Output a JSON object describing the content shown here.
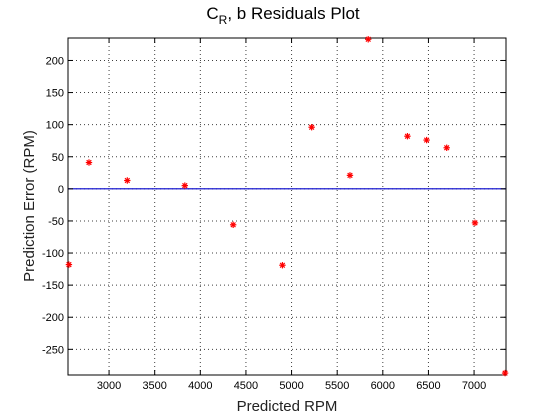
{
  "chart_data": {
    "type": "scatter",
    "title_main": "C",
    "title_sub": "R",
    "title_rest": ", b Residuals Plot",
    "xlabel": "Predicted RPM",
    "ylabel": "Prediction Error (RPM)",
    "xlim": [
      2550,
      7350
    ],
    "ylim": [
      -290,
      235
    ],
    "x_ticks": [
      3000,
      3500,
      4000,
      4500,
      5000,
      5500,
      6000,
      6500,
      7000
    ],
    "y_ticks": [
      200,
      150,
      100,
      50,
      0,
      -50,
      -100,
      -150,
      -200,
      -250
    ],
    "grid": true,
    "zero_line_color": "#0000cc",
    "marker_color": "#ff0000",
    "marker": "asterisk",
    "points": [
      {
        "x": 2560,
        "y": -118
      },
      {
        "x": 2780,
        "y": 41
      },
      {
        "x": 3200,
        "y": 13
      },
      {
        "x": 3830,
        "y": 5
      },
      {
        "x": 4360,
        "y": -56
      },
      {
        "x": 4900,
        "y": -119
      },
      {
        "x": 5220,
        "y": 96
      },
      {
        "x": 5640,
        "y": 21
      },
      {
        "x": 5840,
        "y": 233
      },
      {
        "x": 6270,
        "y": 82
      },
      {
        "x": 6480,
        "y": 76
      },
      {
        "x": 6700,
        "y": 64
      },
      {
        "x": 7010,
        "y": -53
      },
      {
        "x": 7340,
        "y": -287
      }
    ]
  }
}
